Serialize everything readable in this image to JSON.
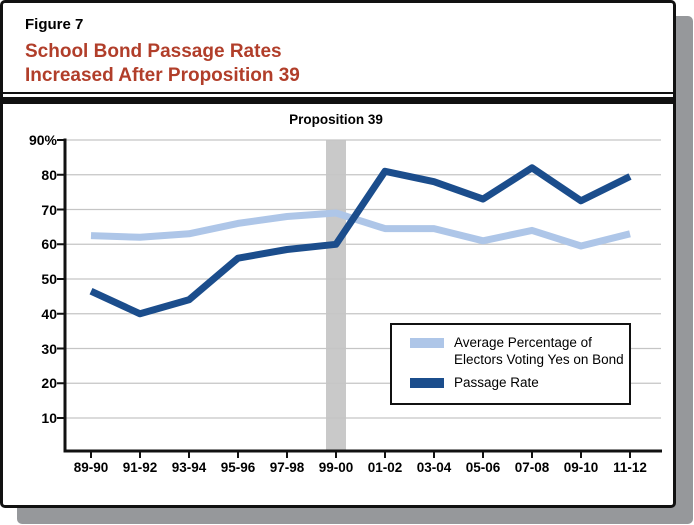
{
  "figure_label": "Figure 7",
  "title_line1": "School Bond Passage Rates",
  "title_line2": "Increased After Proposition 39",
  "legend": {
    "items": [
      {
        "label_line1": "Average Percentage of",
        "label_line2": "Electors Voting Yes on Bond",
        "color": "#aec6e8"
      },
      {
        "label_line1": "Passage Rate",
        "label_line2": "",
        "color": "#1b4d8c"
      }
    ]
  },
  "colors": {
    "title_red": "#b13e2a",
    "dark_blue": "#1b4d8c",
    "light_blue": "#aec6e8",
    "band_gray": "#c9c9c9",
    "grid_gray": "#c5c5c5",
    "axis_black": "#111111",
    "shadow_gray": "#96989b"
  },
  "chart_data": {
    "type": "line",
    "title": "School Bond Passage Rates Increased After Proposition 39",
    "categories": [
      "89-90",
      "91-92",
      "93-94",
      "95-96",
      "97-98",
      "99-00",
      "01-02",
      "03-04",
      "05-06",
      "07-08",
      "09-10",
      "11-12"
    ],
    "series": [
      {
        "name": "Average Percentage of Electors Voting Yes on Bond",
        "color": "#aec6e8",
        "values": [
          62.5,
          62,
          63,
          66,
          68,
          69,
          64.5,
          64.5,
          61,
          64,
          59.5,
          63
        ]
      },
      {
        "name": "Passage Rate",
        "color": "#1b4d8c",
        "values": [
          46.5,
          40,
          44,
          56,
          58.5,
          60,
          81,
          78,
          73,
          82,
          72.5,
          79.5
        ]
      }
    ],
    "ylim": [
      0,
      90
    ],
    "yticks": [
      90,
      80,
      70,
      60,
      50,
      40,
      30,
      20,
      10
    ],
    "ytick_labels": [
      "90%",
      "80",
      "70",
      "60",
      "50",
      "40",
      "30",
      "20",
      "10"
    ],
    "xlabel": "",
    "ylabel": "",
    "grid": "horizontal",
    "legend_position": "inside-bottom-right",
    "annotation": {
      "text": "Proposition 39",
      "x_category": "99-00",
      "band": true
    }
  }
}
